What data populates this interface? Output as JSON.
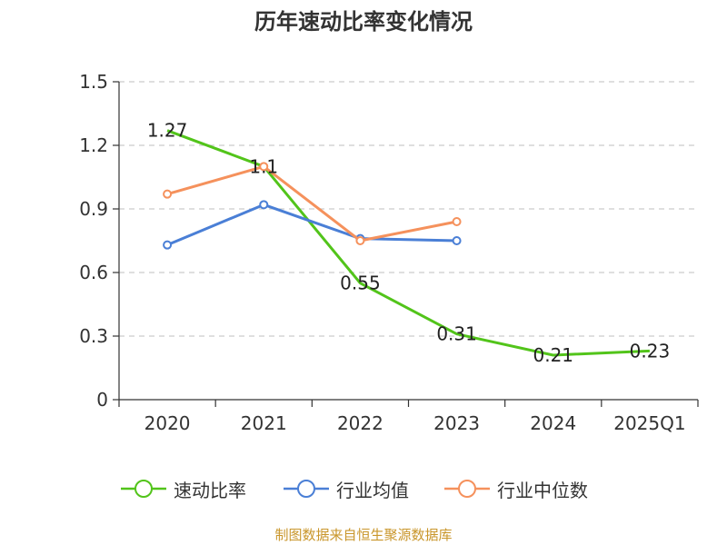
{
  "title": "历年速动比率变化情况",
  "source": "制图数据来自恒生聚源数据库",
  "chart_data": {
    "type": "line",
    "title": "历年速动比率变化情况",
    "categories": [
      "2020",
      "2021",
      "2022",
      "2023",
      "2024",
      "2025Q1"
    ],
    "ylim": [
      0,
      1.5
    ],
    "yticks": [
      "0",
      "0.3",
      "0.6",
      "0.9",
      "1.2",
      "1.5"
    ],
    "ytick_values": [
      0,
      0.3,
      0.6,
      0.9,
      1.2,
      1.5
    ],
    "grid": true,
    "legend_position": "bottom",
    "series": [
      {
        "name": "速动比率",
        "color": "#52c41a",
        "values": [
          1.27,
          1.1,
          0.55,
          0.31,
          0.21,
          0.23
        ],
        "labels": [
          "1.27",
          "1.1",
          "0.55",
          "0.31",
          "0.21",
          "0.23"
        ],
        "markers": false
      },
      {
        "name": "行业均值",
        "color": "#4a7fd6",
        "values": [
          0.73,
          0.92,
          0.76,
          0.75,
          null,
          null
        ],
        "markers": true
      },
      {
        "name": "行业中位数",
        "color": "#f5915c",
        "values": [
          0.97,
          1.1,
          0.75,
          0.84,
          null,
          null
        ],
        "markers": true
      }
    ]
  }
}
